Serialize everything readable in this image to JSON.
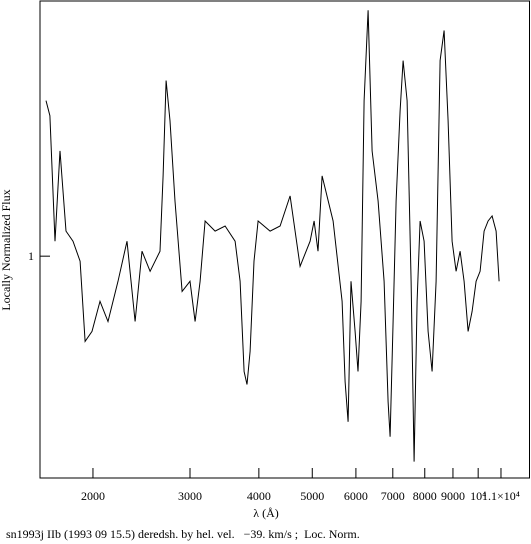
{
  "chart_data": {
    "type": "line",
    "caption": "sn1993j IIb (1993 09 15.5) deredsh. by hel. vel.   −39. km/s ;  Loc. Norm.",
    "x_label": "λ (Å)",
    "y_label": "Locally Normalized Flux",
    "xscale": "log",
    "yscale": "log",
    "xlim": [
      1603,
      12470
    ],
    "ylim": [
      0.41,
      2.8
    ],
    "xticks": [
      2000,
      3000,
      4000,
      5000,
      6000,
      7000,
      8000,
      9000,
      {
        "value": 10000,
        "label": "10⁴"
      },
      {
        "value": 11000,
        "label": "1.1×10⁴"
      }
    ],
    "yticks": [
      1
    ],
    "color": "#000000",
    "x": [
      1644,
      1671,
      1707,
      1743,
      1787,
      1840,
      1895,
      1935,
      1992,
      2060,
      2130,
      2221,
      2306,
      2385,
      2455,
      2539,
      2647,
      2681,
      2715,
      2760,
      2818,
      2902,
      3000,
      3064,
      3129,
      3195,
      3331,
      3474,
      3622,
      3698,
      3760,
      3807,
      3856,
      3920,
      3987,
      4192,
      4371,
      4557,
      4753,
      4954,
      5038,
      5122,
      5209,
      5454,
      5663,
      5734,
      5807,
      5879,
      5979,
      6054,
      6131,
      6208,
      6313,
      6419,
      6582,
      6749,
      6864,
      6921,
      7009,
      7097,
      7217,
      7307,
      7431,
      7556,
      7652,
      7748,
      7846,
      7978,
      8113,
      8249,
      8389,
      8531,
      8674,
      8821,
      8968,
      9119,
      9273,
      9429,
      9588,
      9749,
      9914,
      10080,
      10251,
      10425,
      10600,
      10779,
      10914
    ],
    "values": [
      1.869,
      1.759,
      1.062,
      1.527,
      1.106,
      1.062,
      0.98,
      0.71,
      0.739,
      0.834,
      0.769,
      0.904,
      1.062,
      0.769,
      1.02,
      0.941,
      1.02,
      1.381,
      2.026,
      1.723,
      1.248,
      0.868,
      0.904,
      0.769,
      0.904,
      1.152,
      1.106,
      1.129,
      1.062,
      0.904,
      0.629,
      0.597,
      0.682,
      0.98,
      1.152,
      1.106,
      1.129,
      1.274,
      0.96,
      1.062,
      1.152,
      1.02,
      1.381,
      1.152,
      0.834,
      0.604,
      0.514,
      0.904,
      0.739,
      0.629,
      0.834,
      1.869,
      2.686,
      1.527,
      1.248,
      0.904,
      0.557,
      0.484,
      0.769,
      1.248,
      1.794,
      2.195,
      1.869,
      0.904,
      0.438,
      0.834,
      1.152,
      1.062,
      0.739,
      0.629,
      0.904,
      2.195,
      2.477,
      1.723,
      1.062,
      0.941,
      1.02,
      0.904,
      0.739,
      0.801,
      0.904,
      0.941,
      1.106,
      1.152,
      1.175,
      1.106,
      0.904
    ]
  }
}
